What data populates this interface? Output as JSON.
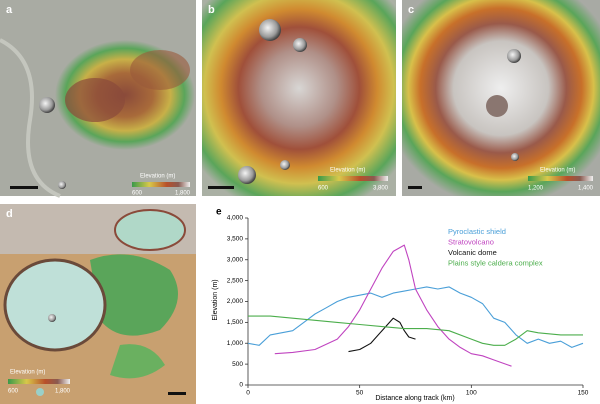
{
  "panels": [
    {
      "label": "a",
      "colorbar_title": "Elevation (m)",
      "colorbar_min": "600",
      "colorbar_max": "1,800"
    },
    {
      "label": "b",
      "colorbar_title": "Elevation (m)",
      "colorbar_min": "600",
      "colorbar_max": "3,800"
    },
    {
      "label": "c",
      "colorbar_title": "Elevation (m)",
      "colorbar_min": "1,200",
      "colorbar_max": "1,400"
    },
    {
      "label": "d",
      "colorbar_title": "Elevation (m)",
      "colorbar_min": "600",
      "colorbar_max": "1,800"
    }
  ],
  "chart_data": {
    "type": "line",
    "panel_label": "e",
    "xlabel": "Distance along track (km)",
    "ylabel": "Elevation (m)",
    "xlim": [
      0,
      150
    ],
    "xticks": [
      0,
      50,
      100,
      150
    ],
    "ylim": [
      0,
      4000
    ],
    "yticks": [
      0,
      500,
      {
        "value": 1000,
        "label": "1,000"
      },
      {
        "value": 1500,
        "label": "1,500"
      },
      {
        "value": 2000,
        "label": "2,000"
      },
      {
        "value": 2500,
        "label": "2,500"
      },
      {
        "value": 3000,
        "label": "3,000"
      },
      {
        "value": 3500,
        "label": "3,500"
      },
      {
        "value": 4000,
        "label": "4,000"
      }
    ],
    "series": [
      {
        "name": "Pyroclastic shield",
        "color": "#4a9fd8",
        "x": [
          0,
          5,
          10,
          15,
          20,
          25,
          30,
          35,
          40,
          45,
          50,
          55,
          60,
          65,
          70,
          75,
          80,
          85,
          90,
          95,
          100,
          105,
          110,
          115,
          120,
          125,
          130,
          135,
          140,
          145,
          150
        ],
        "values": [
          1000,
          950,
          1200,
          1250,
          1300,
          1500,
          1700,
          1850,
          2000,
          2100,
          2150,
          2200,
          2100,
          2200,
          2250,
          2300,
          2350,
          2300,
          2350,
          2200,
          2100,
          1950,
          1600,
          1500,
          1200,
          1000,
          1100,
          1000,
          1050,
          900,
          1000
        ]
      },
      {
        "name": "Stratovolcano",
        "color": "#c044c0",
        "x": [
          12,
          20,
          30,
          40,
          45,
          50,
          55,
          60,
          65,
          70,
          72,
          75,
          80,
          85,
          90,
          95,
          100,
          105,
          110,
          118
        ],
        "values": [
          750,
          780,
          850,
          1100,
          1400,
          1800,
          2300,
          2800,
          3200,
          3350,
          3000,
          2300,
          1800,
          1400,
          1100,
          900,
          750,
          700,
          600,
          450
        ]
      },
      {
        "name": "Volcanic dome",
        "color": "#111111",
        "x": [
          45,
          50,
          55,
          60,
          65,
          68,
          70,
          72,
          75
        ],
        "values": [
          800,
          850,
          1000,
          1300,
          1600,
          1500,
          1300,
          1150,
          1100
        ]
      },
      {
        "name": "Plains style caldera complex",
        "color": "#4cae4c",
        "x": [
          0,
          10,
          20,
          30,
          40,
          50,
          60,
          70,
          80,
          90,
          100,
          105,
          110,
          115,
          120,
          125,
          130,
          140,
          150
        ],
        "values": [
          1650,
          1650,
          1600,
          1550,
          1500,
          1450,
          1400,
          1350,
          1350,
          1300,
          1100,
          1000,
          950,
          950,
          1100,
          1300,
          1250,
          1200,
          1200
        ]
      }
    ]
  }
}
